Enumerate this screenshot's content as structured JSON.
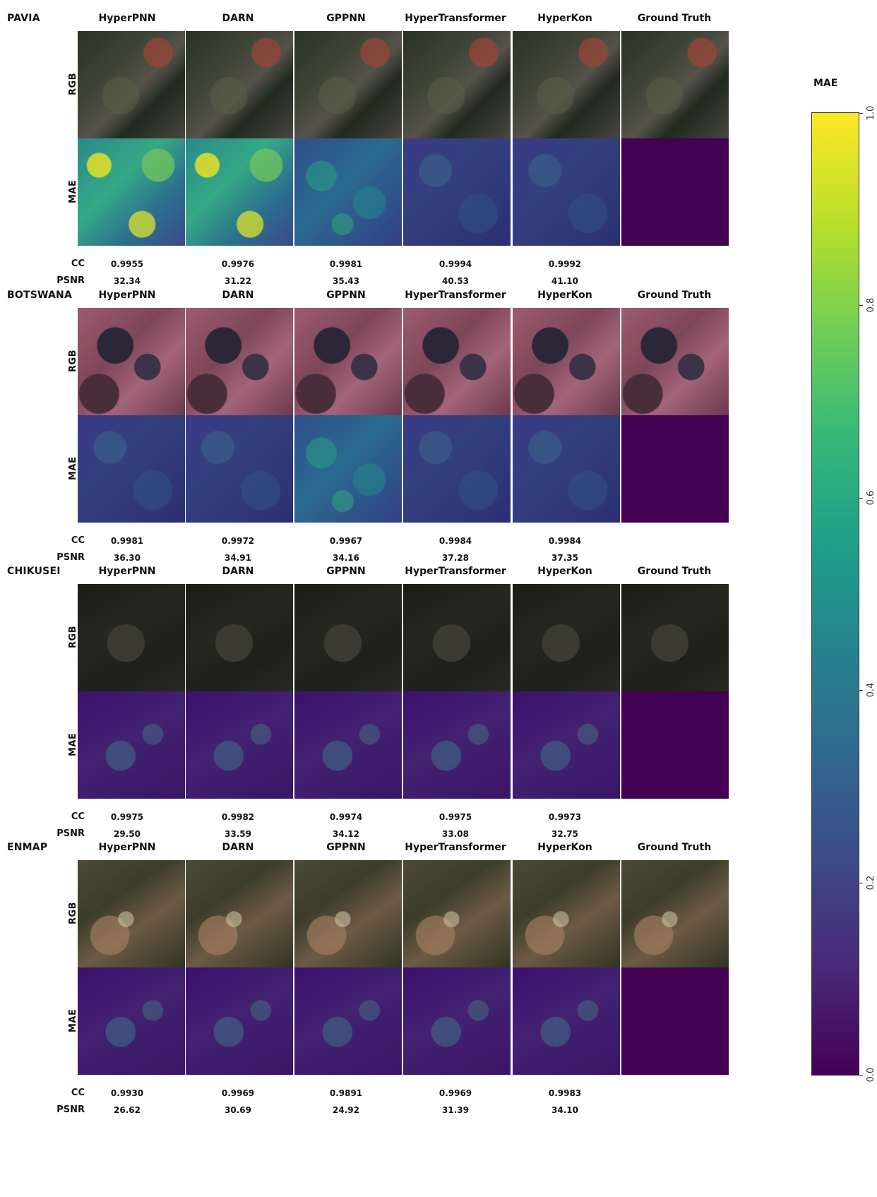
{
  "columns": [
    "HyperPNN",
    "DARN",
    "GPPNN",
    "HyperTransformer",
    "HyperKon",
    "Ground Truth"
  ],
  "row_labels": {
    "rgb": "RGB",
    "mae": "MAE"
  },
  "metric_labels": {
    "cc": "CC",
    "psnr": "PSNR"
  },
  "datasets": [
    {
      "name": "PAVIA",
      "cc": [
        "0.9955",
        "0.9976",
        "0.9981",
        "0.9994",
        "0.9992"
      ],
      "psnr": [
        "32.34",
        "31.22",
        "35.43",
        "40.53",
        "41.10"
      ]
    },
    {
      "name": "BOTSWANA",
      "cc": [
        "0.9981",
        "0.9972",
        "0.9967",
        "0.9984",
        "0.9984"
      ],
      "psnr": [
        "36.30",
        "34.91",
        "34.16",
        "37.28",
        "37.35"
      ]
    },
    {
      "name": "CHIKUSEI",
      "cc": [
        "0.9975",
        "0.9982",
        "0.9974",
        "0.9975",
        "0.9973"
      ],
      "psnr": [
        "29.50",
        "33.59",
        "34.12",
        "33.08",
        "32.75"
      ]
    },
    {
      "name": "ENMAP",
      "cc": [
        "0.9930",
        "0.9969",
        "0.9891",
        "0.9969",
        "0.9983"
      ],
      "psnr": [
        "26.62",
        "30.69",
        "24.92",
        "31.39",
        "34.10"
      ]
    }
  ],
  "colorbar": {
    "title": "MAE",
    "ticks": [
      "0.0",
      "0.2",
      "0.4",
      "0.6",
      "0.8",
      "1.0"
    ],
    "tick_values": [
      0.0,
      0.2,
      0.4,
      0.6,
      0.8,
      1.0
    ],
    "range": [
      0.0,
      1.0
    ],
    "colormap": "viridis"
  }
}
